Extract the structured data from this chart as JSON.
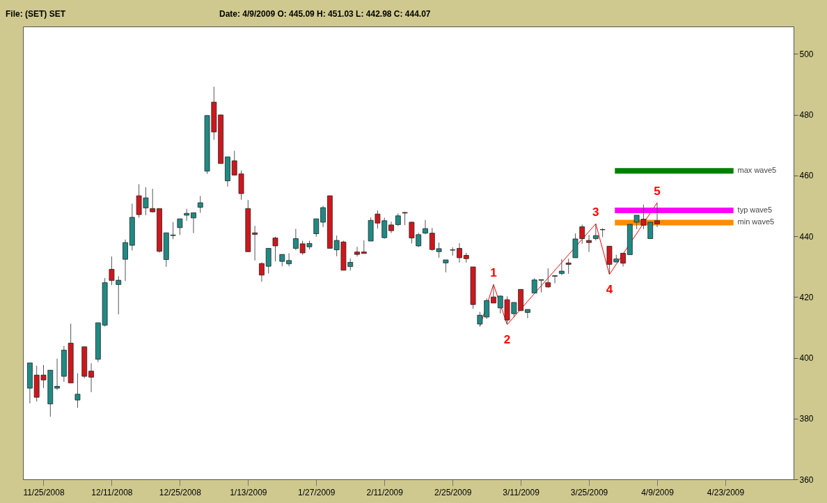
{
  "chart_data": {
    "type": "candlestick",
    "title": "File: (SET) SET",
    "annotations": [
      "Date: 4/9/2009    O:  445.09    H:  451.03    L:  442.98    C:  444.07",
      {
        "text": "1",
        "y": 424.1
      },
      {
        "text": "2",
        "y": 410.9
      },
      {
        "text": "3",
        "y": 444.1
      },
      {
        "text": "4",
        "y": 427.4
      },
      {
        "text": "5",
        "y": 451.0
      }
    ],
    "categories": [
      null,
      null,
      "11/25/2008",
      null,
      null,
      null,
      null,
      null,
      null,
      null,
      null,
      null,
      "12/11/2008",
      null,
      null,
      null,
      null,
      null,
      null,
      null,
      null,
      null,
      "12/25/2008",
      null,
      null,
      null,
      null,
      null,
      null,
      null,
      null,
      null,
      "1/13/2009",
      null,
      null,
      null,
      null,
      null,
      null,
      null,
      null,
      null,
      "1/27/2009",
      null,
      null,
      null,
      null,
      null,
      null,
      null,
      null,
      null,
      "2/11/2009",
      null,
      null,
      null,
      null,
      null,
      null,
      null,
      null,
      null,
      "2/25/2009",
      null,
      null,
      null,
      null,
      null,
      null,
      null,
      null,
      null,
      "3/11/2009",
      null,
      null,
      null,
      null,
      null,
      null,
      null,
      null,
      null,
      "3/25/2009",
      null,
      null,
      null,
      null,
      null,
      null,
      null,
      null,
      null,
      "4/9/2009",
      null,
      null,
      null,
      null,
      null,
      null,
      null,
      null,
      null,
      "4/23/2009",
      null,
      null,
      null,
      null,
      null,
      null,
      null,
      null,
      null
    ],
    "ohlc": [
      [
        390.0,
        398.3,
        385.0,
        398.3
      ],
      [
        394.3,
        397.4,
        385.6,
        387.0
      ],
      [
        394.3,
        397.6,
        390.0,
        392.7
      ],
      [
        384.8,
        395.9,
        380.6,
        395.9
      ],
      [
        390.0,
        399.7,
        389.4,
        390.6
      ],
      [
        393.9,
        403.9,
        392.1,
        402.5
      ],
      [
        404.8,
        411.2,
        391.7,
        391.7
      ],
      [
        386.1,
        394.9,
        383.5,
        388.0
      ],
      [
        403.6,
        403.6,
        393.3,
        393.9
      ],
      [
        395.6,
        398.2,
        388.7,
        393.6
      ],
      [
        399.5,
        411.5,
        398.6,
        411.5
      ],
      [
        410.7,
        426.2,
        410.3,
        424.7
      ],
      [
        429.1,
        433.3,
        423.9,
        425.4
      ],
      [
        424.1,
        426.8,
        414.3,
        425.5
      ],
      [
        432.4,
        438.9,
        425.2,
        437.9
      ],
      [
        437.0,
        450.7,
        435.3,
        446.2
      ],
      [
        453.3,
        457.1,
        446.1,
        447.1
      ],
      [
        449.3,
        456.1,
        446.9,
        452.6
      ],
      [
        449.1,
        455.6,
        447.8,
        448.0
      ],
      [
        449.1,
        449.1,
        434.6,
        435.0
      ],
      [
        432.3,
        441.1,
        429.9,
        441.1
      ],
      [
        440.2,
        444.6,
        439.0,
        440.4
      ],
      [
        442.8,
        445.7,
        440.4,
        445.7
      ],
      [
        446.9,
        449.0,
        445.1,
        447.5
      ],
      [
        446.0,
        447.7,
        441.0,
        447.7
      ],
      [
        449.5,
        453.2,
        447.7,
        451.0
      ],
      [
        461.4,
        479.7,
        460.5,
        479.7
      ],
      [
        484.1,
        489.2,
        471.7,
        474.3
      ],
      [
        479.9,
        479.9,
        463.9,
        463.9
      ],
      [
        458.2,
        466.1,
        456.3,
        466.1
      ],
      [
        464.8,
        468.1,
        460.1,
        460.1
      ],
      [
        460.5,
        461.6,
        452.0,
        454.0
      ],
      [
        449.1,
        451.9,
        434.9,
        434.9
      ],
      [
        441.1,
        443.4,
        432.0,
        440.6
      ],
      [
        431.0,
        431.4,
        425.0,
        427.2
      ],
      [
        430.1,
        436.0,
        427.7,
        436.0
      ],
      [
        439.4,
        439.8,
        431.7,
        436.8
      ],
      [
        431.7,
        434.0,
        430.1,
        434.0
      ],
      [
        430.9,
        434.4,
        430.1,
        432.0
      ],
      [
        436.0,
        442.4,
        435.4,
        439.2
      ],
      [
        437.5,
        438.5,
        433.9,
        434.5
      ],
      [
        436.5,
        438.5,
        435.6,
        437.6
      ],
      [
        440.8,
        445.7,
        439.8,
        445.7
      ],
      [
        444.6,
        450.0,
        443.0,
        449.4
      ],
      [
        453.3,
        453.3,
        436.0,
        436.0
      ],
      [
        435.5,
        440.2,
        433.4,
        438.6
      ],
      [
        438.1,
        438.5,
        428.8,
        428.8
      ],
      [
        430.0,
        432.6,
        428.7,
        431.4
      ],
      [
        434.8,
        436.5,
        433.3,
        434.0
      ],
      [
        434.8,
        438.6,
        434.3,
        434.3
      ],
      [
        438.4,
        446.1,
        438.4,
        445.2
      ],
      [
        447.3,
        448.5,
        442.5,
        444.3
      ],
      [
        439.5,
        446.1,
        439.2,
        445.1
      ],
      [
        443.7,
        444.8,
        441.0,
        441.8
      ],
      [
        443.8,
        447.5,
        443.3,
        446.7
      ],
      [
        447.8,
        448.0,
        443.6,
        447.6
      ],
      [
        444.6,
        444.8,
        437.6,
        439.4
      ],
      [
        436.8,
        441.1,
        436.4,
        440.5
      ],
      [
        441.0,
        445.3,
        440.6,
        442.5
      ],
      [
        441.0,
        442.7,
        435.2,
        435.6
      ],
      [
        434.9,
        437.9,
        432.9,
        435.9
      ],
      [
        431.2,
        432.2,
        428.1,
        432.2
      ],
      [
        435.4,
        436.3,
        433.6,
        435.5
      ],
      [
        436.0,
        437.7,
        431.3,
        432.9
      ],
      [
        433.7,
        434.5,
        431.3,
        432.6
      ],
      [
        429.9,
        429.9,
        416.1,
        417.5
      ],
      [
        411.1,
        415.1,
        410.3,
        414.0
      ],
      [
        413.4,
        419.5,
        412.8,
        418.8
      ],
      [
        420.0,
        424.1,
        418.0,
        418.0
      ],
      [
        416.4,
        420.5,
        414.6,
        420.3
      ],
      [
        419.1,
        420.2,
        410.9,
        412.4
      ],
      [
        414.5,
        418.2,
        413.3,
        418.2
      ],
      [
        422.5,
        422.5,
        415.5,
        415.5
      ],
      [
        414.9,
        415.9,
        413.0,
        415.9
      ],
      [
        421.3,
        426.2,
        421.3,
        425.6
      ],
      [
        425.5,
        425.7,
        421.5,
        425.7
      ],
      [
        424.7,
        429.4,
        423.0,
        423.3
      ],
      [
        426.8,
        427.1,
        424.5,
        427.0
      ],
      [
        427.7,
        432.5,
        427.2,
        428.5
      ],
      [
        431.2,
        432.6,
        427.6,
        430.7
      ],
      [
        432.9,
        440.9,
        432.9,
        439.1
      ],
      [
        443.1,
        443.8,
        437.5,
        439.2
      ],
      [
        438.6,
        440.4,
        434.8,
        437.9
      ],
      [
        439.2,
        444.1,
        438.6,
        440.2
      ],
      [
        442.1,
        442.6,
        439.7,
        442.2
      ],
      [
        436.7,
        436.7,
        427.4,
        430.7
      ],
      [
        431.5,
        433.9,
        431.5,
        432.5
      ],
      [
        434.4,
        434.4,
        430.0,
        431.1
      ],
      [
        433.9,
        443.9,
        433.9,
        443.9
      ],
      [
        444.6,
        446.9,
        442.3,
        446.9
      ],
      [
        445.6,
        450.4,
        442.3,
        443.6
      ],
      [
        439.2,
        444.6,
        439.2,
        444.6
      ],
      [
        445.09,
        451.03,
        442.98,
        444.07
      ],
      null,
      null,
      null,
      null,
      null,
      null,
      null,
      null,
      null,
      null,
      null,
      null,
      null,
      null,
      null,
      null,
      null,
      null,
      null
    ],
    "colors": [
      "#1f8a84",
      "#d0161b",
      "#d0161b",
      "#1f8a84",
      "#1f8a84",
      "#1f8a84",
      "#d0161b",
      "#1f8a84",
      "#d0161b",
      "#d0161b",
      "#1f8a84",
      "#1f8a84",
      "#d0161b",
      "#1f8a84",
      "#1f8a84",
      "#1f8a84",
      "#d0161b",
      "#1f8a84",
      "#d0161b",
      "#d0161b",
      "#1f8a84",
      "#1f8a84",
      "#1f8a84",
      "#1f8a84",
      "#1f8a84",
      "#1f8a84",
      "#1f8a84",
      "#d0161b",
      "#d0161b",
      "#1f8a84",
      "#d0161b",
      "#d0161b",
      "#d0161b",
      "#d0161b",
      "#d0161b",
      "#1f8a84",
      "#d0161b",
      "#1f8a84",
      "#1f8a84",
      "#1f8a84",
      "#d0161b",
      "#1f8a84",
      "#1f8a84",
      "#1f8a84",
      "#d0161b",
      "#1f8a84",
      "#d0161b",
      "#1f8a84",
      "#d0161b",
      "#d0161b",
      "#1f8a84",
      "#d0161b",
      "#1f8a84",
      "#d0161b",
      "#1f8a84",
      "#d0161b",
      "#d0161b",
      "#1f8a84",
      "#1f8a84",
      "#d0161b",
      "#1f8a84",
      "#1f8a84",
      "#1f8a84",
      "#d0161b",
      "#d0161b",
      "#d0161b",
      "#1f8a84",
      "#1f8a84",
      "#d0161b",
      "#1f8a84",
      "#d0161b",
      "#1f8a84",
      "#d0161b",
      "#1f8a84",
      "#1f8a84",
      "#1f8a84",
      "#d0161b",
      "#1f8a84",
      "#1f8a84",
      "#d0161b",
      "#1f8a84",
      "#d0161b",
      "#d0161b",
      "#1f8a84",
      "#1f8a84",
      "#d0161b",
      "#1f8a84",
      "#d0161b",
      "#1f8a84",
      "#1f8a84",
      "#d0161b",
      "#1f8a84",
      "#d0161b",
      null,
      null,
      null,
      null,
      null,
      null,
      null,
      null,
      null,
      null,
      null,
      null,
      null,
      null,
      null,
      null,
      null,
      null,
      null
    ],
    "series": [
      {
        "type": "line",
        "color": "#ff0000",
        "values": [
          null,
          null,
          null,
          null,
          null,
          null,
          null,
          null,
          null,
          null,
          null,
          null,
          null,
          null,
          null,
          null,
          null,
          null,
          null,
          null,
          null,
          null,
          null,
          null,
          null,
          null,
          null,
          null,
          null,
          null,
          null,
          null,
          null,
          null,
          null,
          null,
          null,
          null,
          null,
          null,
          null,
          null,
          null,
          null,
          null,
          null,
          null,
          null,
          null,
          null,
          null,
          null,
          null,
          null,
          null,
          null,
          null,
          null,
          null,
          null,
          null,
          null,
          null,
          null,
          null,
          null,
          410.3,
          null,
          424.1,
          null,
          410.9,
          null,
          null,
          null,
          null,
          null,
          null,
          null,
          null,
          null,
          null,
          null,
          null,
          444.1,
          null,
          427.4,
          null,
          null,
          null,
          null,
          null,
          null,
          451.0,
          null,
          null,
          null,
          null,
          null,
          null,
          null,
          null,
          null,
          null,
          null,
          null,
          null,
          null,
          null,
          null,
          null,
          null,
          null
        ]
      }
    ],
    "ref_lines": [
      {
        "axis": "y",
        "value": 461.5,
        "label": "max wave5",
        "color": "#008000"
      },
      {
        "axis": "y",
        "value": 448.5,
        "label": "typ wave5",
        "color": "#ff00ff"
      },
      {
        "axis": "y",
        "value": 444.5,
        "label": "min wave5",
        "color": "#ff8c00"
      }
    ],
    "ylim": [
      360,
      509
    ],
    "yticks": [
      360,
      380,
      400,
      420,
      440,
      460,
      480,
      500
    ]
  }
}
